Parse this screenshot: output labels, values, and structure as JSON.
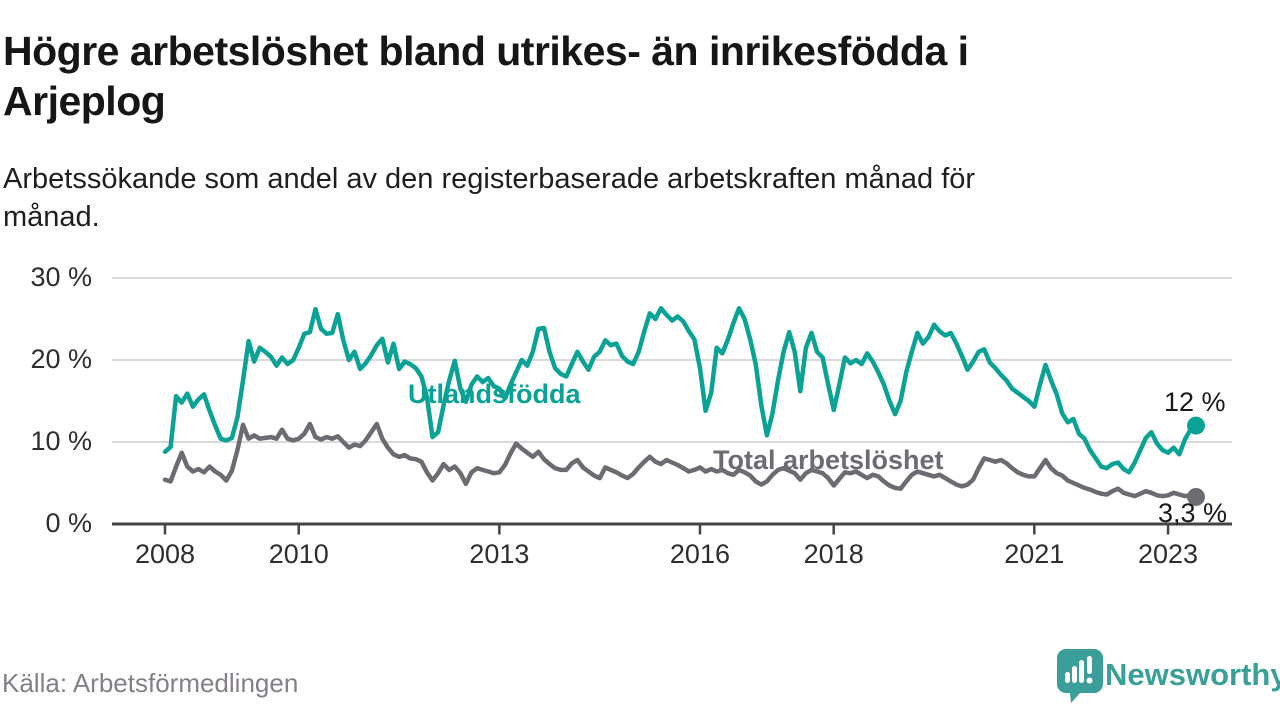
{
  "header": {
    "title": "Högre arbetslöshet bland utrikes- än inrikesfödda i\nArjeplog",
    "subtitle": "Arbetssökande som andel av den registerbaserade arbetskraften månad för\nmånad."
  },
  "footer": {
    "source": "Källa: Arbetsförmedlingen",
    "brand": "Newsworthy"
  },
  "colors": {
    "teal": "#0ba296",
    "gray": "#6e6a71",
    "grid": "#d9d9d9",
    "axis": "#454545",
    "logo_teal": "#399f98"
  },
  "chart_data": {
    "type": "line",
    "title": "Högre arbetslöshet bland utrikes- än inrikesfödda i Arjeplog",
    "subtitle": "Arbetssökande som andel av den registerbaserade arbetskraften månad för månad.",
    "x_unit": "month",
    "x_start": "2008-01",
    "x_end": "2023-06",
    "ylim": [
      0,
      30
    ],
    "grid": "horizontal",
    "y_ticks": [
      {
        "value": 30,
        "label": "30 %"
      },
      {
        "value": 20,
        "label": "20 %"
      },
      {
        "value": 10,
        "label": "10 %"
      },
      {
        "value": 0,
        "label": "0 %"
      }
    ],
    "x_ticks": [
      {
        "year": 2008,
        "label": "2008"
      },
      {
        "year": 2010,
        "label": "2010"
      },
      {
        "year": 2013,
        "label": "2013"
      },
      {
        "year": 2016,
        "label": "2016"
      },
      {
        "year": 2018,
        "label": "2018"
      },
      {
        "year": 2021,
        "label": "2021"
      },
      {
        "year": 2023,
        "label": "2023"
      }
    ],
    "series": [
      {
        "name": "Utlandsfödda",
        "color": "#0ba296",
        "end_label": "12 %",
        "end_value": 12,
        "values": [
          8.8,
          9.4,
          15.6,
          14.8,
          15.9,
          14.3,
          15.2,
          15.8,
          13.8,
          12.0,
          10.4,
          10.2,
          10.5,
          13.0,
          17.5,
          22.3,
          19.8,
          21.5,
          21.0,
          20.4,
          19.3,
          20.3,
          19.5,
          20.0,
          21.5,
          23.2,
          23.4,
          26.2,
          23.8,
          23.2,
          23.3,
          25.6,
          22.4,
          20.0,
          21.0,
          18.9,
          19.6,
          20.6,
          21.8,
          22.6,
          19.7,
          22.0,
          18.9,
          19.8,
          19.5,
          19.0,
          18.0,
          15.5,
          10.6,
          11.2,
          14.5,
          17.5,
          19.9,
          16.5,
          14.9,
          17.0,
          18.0,
          17.3,
          17.8,
          16.8,
          16.5,
          15.3,
          17.0,
          18.5,
          20.0,
          19.3,
          21.0,
          23.8,
          23.9,
          21.0,
          19.0,
          18.3,
          18.0,
          19.5,
          21.0,
          19.8,
          18.8,
          20.4,
          21.0,
          22.4,
          21.8,
          22.0,
          20.5,
          19.8,
          19.5,
          21.0,
          23.5,
          25.7,
          25.0,
          26.3,
          25.5,
          24.8,
          25.3,
          24.7,
          23.5,
          22.5,
          19.0,
          13.8,
          16.0,
          21.5,
          20.8,
          22.5,
          24.5,
          26.3,
          25.0,
          22.5,
          19.5,
          14.5,
          10.8,
          13.5,
          17.5,
          21.0,
          23.4,
          21.0,
          16.2,
          21.5,
          23.3,
          21.0,
          20.3,
          17.0,
          13.9,
          17.0,
          20.3,
          19.6,
          20.0,
          19.5,
          20.8,
          19.8,
          18.5,
          17.0,
          15.0,
          13.4,
          15.0,
          18.5,
          21.0,
          23.3,
          22.0,
          22.8,
          24.3,
          23.5,
          23.0,
          23.3,
          22.0,
          20.5,
          18.8,
          19.8,
          21.0,
          21.3,
          19.7,
          19.0,
          18.2,
          17.5,
          16.5,
          16.0,
          15.5,
          15.0,
          14.3,
          17.0,
          19.4,
          17.5,
          15.8,
          13.5,
          12.4,
          12.8,
          11.0,
          10.4,
          9.0,
          8.0,
          7.0,
          6.8,
          7.3,
          7.5,
          6.7,
          6.3,
          7.5,
          9.0,
          10.5,
          11.2,
          9.8,
          9.0,
          8.7,
          9.3,
          8.5,
          10.3,
          11.5,
          12.0
        ]
      },
      {
        "name": "Total arbetslöshet",
        "color": "#6e6a71",
        "end_label": "3,3 %",
        "end_value": 3.3,
        "values": [
          5.4,
          5.2,
          7.0,
          8.7,
          7.0,
          6.4,
          6.7,
          6.3,
          7.0,
          6.4,
          6.0,
          5.3,
          6.5,
          9.0,
          12.1,
          10.4,
          10.8,
          10.4,
          10.5,
          10.6,
          10.4,
          11.5,
          10.4,
          10.2,
          10.4,
          11.0,
          12.2,
          10.6,
          10.3,
          10.6,
          10.4,
          10.7,
          10.0,
          9.3,
          9.7,
          9.5,
          10.2,
          11.2,
          12.2,
          10.4,
          9.3,
          8.5,
          8.2,
          8.4,
          8.0,
          7.9,
          7.6,
          6.3,
          5.3,
          6.2,
          7.3,
          6.6,
          7.0,
          6.2,
          4.9,
          6.3,
          6.8,
          6.6,
          6.4,
          6.2,
          6.3,
          7.2,
          8.6,
          9.8,
          9.2,
          8.7,
          8.2,
          8.8,
          7.9,
          7.3,
          6.8,
          6.6,
          6.6,
          7.4,
          7.8,
          6.9,
          6.4,
          5.9,
          5.6,
          6.9,
          6.6,
          6.3,
          5.9,
          5.6,
          6.1,
          6.9,
          7.6,
          8.2,
          7.6,
          7.3,
          7.8,
          7.5,
          7.2,
          6.8,
          6.4,
          6.6,
          6.9,
          6.4,
          6.7,
          6.4,
          6.6,
          6.2,
          6.0,
          6.6,
          6.3,
          5.9,
          5.2,
          4.8,
          5.2,
          6.0,
          6.6,
          6.8,
          6.5,
          6.2,
          5.4,
          6.2,
          6.6,
          6.4,
          6.2,
          5.6,
          4.7,
          5.5,
          6.3,
          6.2,
          6.4,
          6.0,
          5.6,
          6.0,
          5.8,
          5.2,
          4.7,
          4.4,
          4.3,
          5.2,
          6.0,
          6.4,
          6.2,
          6.0,
          5.8,
          6.0,
          5.6,
          5.2,
          4.8,
          4.6,
          4.8,
          5.4,
          6.8,
          8.0,
          7.8,
          7.6,
          7.8,
          7.4,
          6.8,
          6.3,
          6.0,
          5.8,
          5.8,
          6.8,
          7.8,
          6.8,
          6.2,
          5.9,
          5.3,
          5.0,
          4.7,
          4.4,
          4.2,
          3.9,
          3.7,
          3.6,
          4.0,
          4.3,
          3.8,
          3.6,
          3.4,
          3.7,
          4.0,
          3.8,
          3.5,
          3.4,
          3.5,
          3.8,
          3.6,
          3.4,
          3.5,
          3.3
        ]
      }
    ]
  }
}
